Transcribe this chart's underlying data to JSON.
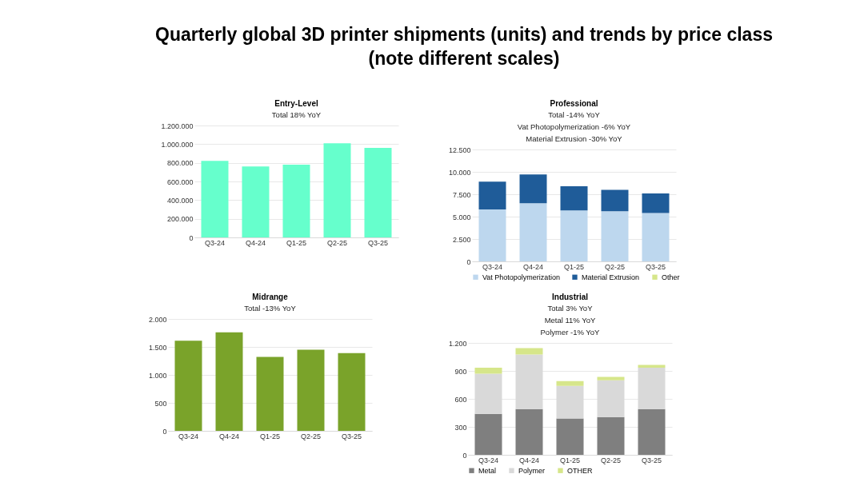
{
  "chart_data": [
    {
      "type": "other",
      "title": "Quarterly global 3D printer shipments (units) and trends by price class (note different scales)"
    },
    {
      "type": "bar",
      "title": "Entry-Level",
      "categories": [
        "Q3-24",
        "Q4-24",
        "Q1-25",
        "Q2-25",
        "Q3-25"
      ],
      "values": [
        820000,
        760000,
        780000,
        1010000,
        960000
      ],
      "color": "#66ffcc",
      "ylim": [
        0,
        1200000
      ],
      "yticks": [
        0,
        {
          "value": 200000,
          "label": "200.000"
        },
        {
          "value": 400000,
          "label": "400.000"
        },
        {
          "value": 600000,
          "label": "600.000"
        },
        {
          "value": 800000,
          "label": "800.000"
        },
        {
          "value": 1000000,
          "label": "1.000.000"
        },
        {
          "value": 1200000,
          "label": "1.200.000"
        }
      ],
      "grid": "y",
      "annotations": [
        "Total 18% YoY"
      ]
    },
    {
      "type": "bar",
      "title": "Professional",
      "categories": [
        "Q3-24",
        "Q4-24",
        "Q1-25",
        "Q2-25",
        "Q3-25"
      ],
      "stacked": true,
      "series": [
        {
          "name": "Vat Photopolymerization",
          "color": "#bdd7ee",
          "values": [
            5800,
            6500,
            5700,
            5600,
            5400
          ]
        },
        {
          "name": "Material Extrusion",
          "color": "#1f5c99",
          "values": [
            3100,
            3200,
            2700,
            2400,
            2200
          ]
        },
        {
          "name": "Other",
          "color": "#d6e68a",
          "values": [
            0,
            0,
            0,
            0,
            0
          ]
        }
      ],
      "ylim": [
        0,
        12500
      ],
      "yticks": [
        0,
        {
          "value": 2500,
          "label": "2.500"
        },
        {
          "value": 5000,
          "label": "5.000"
        },
        {
          "value": 7500,
          "label": "7.500"
        },
        {
          "value": 10000,
          "label": "10.000"
        },
        {
          "value": 12500,
          "label": "12.500"
        }
      ],
      "grid": "y",
      "legend": "bottom",
      "annotations": [
        "Total -14% YoY",
        "Vat Photopolymerization -6% YoY",
        "Material Extrusion -30% YoY"
      ]
    },
    {
      "type": "bar",
      "title": "Midrange",
      "categories": [
        "Q3-24",
        "Q4-24",
        "Q1-25",
        "Q2-25",
        "Q3-25"
      ],
      "values": [
        1610,
        1760,
        1320,
        1450,
        1390
      ],
      "color": "#7aa32a",
      "ylim": [
        0,
        2000
      ],
      "yticks": [
        0,
        500,
        {
          "value": 1000,
          "label": "1.000"
        },
        {
          "value": 1500,
          "label": "1.500"
        },
        {
          "value": 2000,
          "label": "2.000"
        }
      ],
      "grid": "y",
      "annotations": [
        "Total -13% YoY"
      ]
    },
    {
      "type": "bar",
      "title": "Industrial",
      "categories": [
        "Q3-24",
        "Q4-24",
        "Q1-25",
        "Q2-25",
        "Q3-25"
      ],
      "stacked": true,
      "series": [
        {
          "name": "Metal",
          "color": "#7f7f7f",
          "values": [
            440,
            490,
            390,
            405,
            490
          ]
        },
        {
          "name": "Polymer",
          "color": "#d9d9d9",
          "values": [
            430,
            585,
            350,
            395,
            445
          ]
        },
        {
          "name": "OTHER",
          "color": "#d6e68a",
          "values": [
            65,
            70,
            50,
            35,
            30
          ]
        }
      ],
      "ylim": [
        0,
        1200
      ],
      "yticks": [
        0,
        300,
        600,
        900,
        {
          "value": 1200,
          "label": "1.200"
        }
      ],
      "grid": "y",
      "legend": "bottom",
      "annotations": [
        "Total 3% YoY",
        "Metal 11% YoY",
        "Polymer -1% YoY"
      ]
    }
  ]
}
